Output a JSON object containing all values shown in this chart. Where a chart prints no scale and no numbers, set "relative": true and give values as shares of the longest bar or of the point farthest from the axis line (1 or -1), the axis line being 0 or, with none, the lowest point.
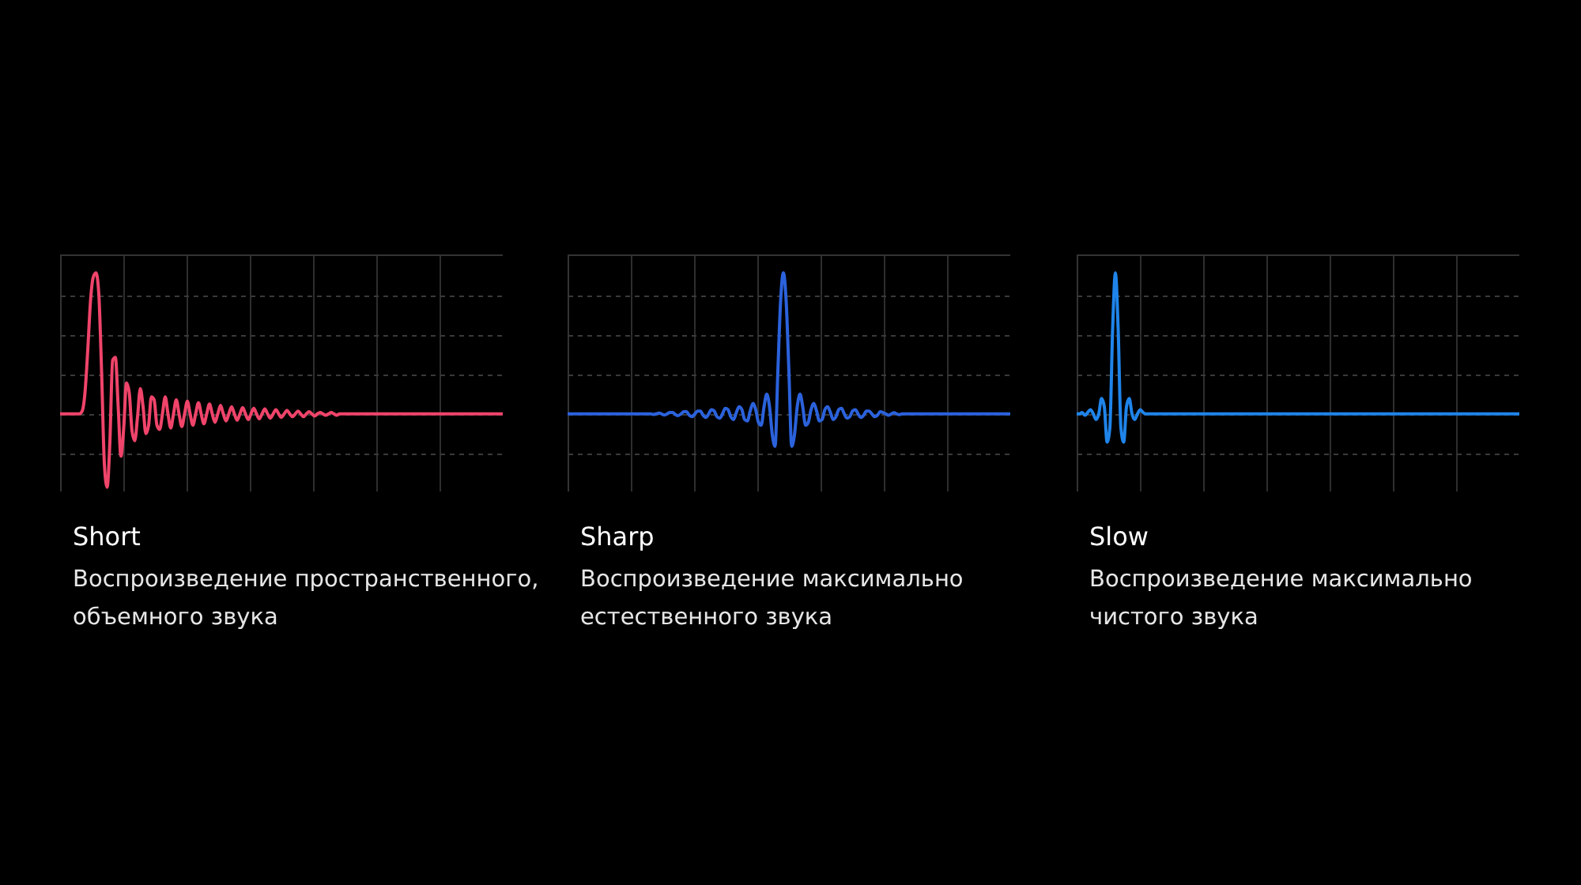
{
  "chart_data": [
    {
      "type": "line",
      "relative": true,
      "grid": true,
      "title": "Short",
      "subtitle": "Воспроизведение пространственного, объемного звука",
      "categories": [
        null,
        null,
        null,
        null,
        null,
        null,
        null,
        null,
        null,
        null,
        null,
        null,
        null,
        null,
        null,
        null,
        null,
        null,
        null,
        null,
        null,
        null,
        null,
        null,
        null,
        null,
        null,
        null,
        null,
        null,
        null,
        null,
        null,
        null,
        null,
        null,
        null,
        null,
        null,
        null,
        null,
        null,
        null,
        null,
        null,
        null,
        null,
        null,
        null,
        null,
        null,
        null,
        null,
        null,
        null,
        null,
        null,
        null,
        null,
        null,
        null,
        null,
        null,
        null,
        null,
        null,
        null,
        null,
        null,
        null,
        null,
        null,
        null,
        null,
        null,
        null,
        null,
        null,
        null,
        null,
        null,
        null,
        null,
        null,
        null,
        null,
        null,
        null,
        null,
        null,
        null,
        null,
        null,
        null,
        null,
        null,
        null,
        null,
        null,
        null,
        null,
        null,
        null,
        null,
        null,
        null,
        null,
        null,
        null,
        null,
        null,
        null,
        null,
        null,
        null,
        null,
        null,
        null,
        null,
        null,
        null,
        null,
        null,
        null,
        null,
        null,
        null,
        null,
        null,
        null,
        null,
        null,
        null,
        null,
        null,
        null,
        null,
        null,
        null,
        null,
        null,
        null,
        null,
        null,
        null,
        null,
        null,
        null,
        null,
        null,
        null,
        null,
        null,
        null,
        null,
        null,
        null,
        null,
        null,
        null,
        null
      ],
      "series": [
        {
          "color": "#f0446a",
          "values": [
            0,
            0,
            0,
            0,
            0,
            0,
            0,
            0,
            0.02,
            0.15,
            0.45,
            0.8,
            0.97,
            1,
            0.85,
            0.3,
            -0.35,
            -0.52,
            -0.2,
            0.38,
            0.4,
            0.05,
            -0.3,
            -0.1,
            0.22,
            0.15,
            -0.12,
            -0.19,
            -0.02,
            0.18,
            0.05,
            -0.14,
            -0.08,
            0.12,
            0.1,
            -0.08,
            -0.11,
            0,
            0.12,
            0,
            -0.1,
            0,
            0.1,
            0,
            -0.09,
            0,
            0.09,
            0,
            -0.08,
            0,
            0.08,
            0,
            -0.07,
            0,
            0.07,
            0,
            -0.06,
            0,
            0.06,
            0,
            -0.05,
            0,
            0.05,
            0,
            -0.045,
            0,
            0.045,
            0,
            -0.04,
            0,
            0.04,
            0,
            -0.035,
            0,
            0.035,
            0,
            -0.03,
            0,
            0.03,
            0,
            -0.025,
            0,
            0.025,
            0,
            -0.02,
            0,
            0.02,
            0,
            -0.02,
            0,
            0.015,
            0,
            -0.015,
            0,
            0.01,
            0,
            -0.01,
            0,
            0.01,
            0,
            -0.01,
            0,
            0,
            0,
            0,
            0,
            0,
            0,
            0,
            0,
            0,
            0,
            0,
            0,
            0,
            0,
            0,
            0,
            0,
            0,
            0,
            0,
            0,
            0,
            0,
            0,
            0,
            0,
            0,
            0,
            0,
            0,
            0,
            0,
            0,
            0,
            0,
            0,
            0,
            0,
            0,
            0,
            0,
            0,
            0,
            0,
            0,
            0,
            0,
            0,
            0,
            0,
            0,
            0,
            0,
            0,
            0,
            0,
            0,
            0,
            0
          ]
        }
      ]
    },
    {
      "type": "line",
      "relative": true,
      "grid": true,
      "title": "Sharp",
      "subtitle": "Воспроизведение максимально естественного звука",
      "categories": [
        null,
        null,
        null,
        null,
        null,
        null,
        null,
        null,
        null,
        null,
        null,
        null,
        null,
        null,
        null,
        null,
        null,
        null,
        null,
        null,
        null,
        null,
        null,
        null,
        null,
        null,
        null,
        null,
        null,
        null,
        null,
        null,
        null,
        null,
        null,
        null,
        null,
        null,
        null,
        null,
        null,
        null,
        null,
        null,
        null,
        null,
        null,
        null,
        null,
        null,
        null,
        null,
        null,
        null,
        null,
        null,
        null,
        null,
        null,
        null,
        null,
        null,
        null,
        null,
        null,
        null,
        null,
        null,
        null,
        null,
        null,
        null,
        null,
        null,
        null,
        null,
        null,
        null,
        null,
        null,
        null,
        null,
        null,
        null,
        null,
        null,
        null,
        null,
        null,
        null,
        null,
        null,
        null,
        null,
        null,
        null,
        null,
        null,
        null,
        null,
        null,
        null,
        null,
        null,
        null,
        null,
        null,
        null,
        null,
        null,
        null,
        null,
        null,
        null,
        null,
        null,
        null,
        null,
        null,
        null,
        null,
        null,
        null,
        null,
        null,
        null,
        null,
        null,
        null,
        null,
        null,
        null,
        null,
        null,
        null,
        null,
        null,
        null,
        null,
        null,
        null,
        null,
        null,
        null,
        null,
        null,
        null,
        null,
        null,
        null,
        null,
        null,
        null,
        null,
        null,
        null,
        null,
        null,
        null,
        null,
        null
      ],
      "series": [
        {
          "color": "#2b62dc",
          "values": [
            0,
            0,
            0,
            0,
            0,
            0,
            0,
            0,
            0,
            0,
            0,
            0,
            0,
            0,
            0,
            0,
            0,
            0,
            0,
            0,
            0,
            0,
            0,
            0,
            0,
            0,
            0,
            0,
            0,
            0,
            0,
            -0.004,
            0,
            0.006,
            0,
            -0.008,
            0,
            0.01,
            0.01,
            -0.005,
            -0.012,
            0,
            0.015,
            0.015,
            -0.01,
            -0.02,
            0,
            0.02,
            0.02,
            -0.01,
            -0.025,
            0,
            0.03,
            0.02,
            -0.02,
            -0.03,
            0,
            0.04,
            0.03,
            -0.02,
            -0.04,
            0.01,
            0.05,
            0.03,
            -0.04,
            -0.05,
            0.02,
            0.075,
            0.03,
            -0.06,
            -0.08,
            0.05,
            0.14,
            0.05,
            -0.15,
            -0.23,
            0.3,
            0.8,
            1,
            0.8,
            0.3,
            -0.23,
            -0.15,
            0.05,
            0.14,
            0.05,
            -0.08,
            -0.06,
            0.03,
            0.075,
            0.02,
            -0.05,
            -0.04,
            0.03,
            0.05,
            0.01,
            -0.04,
            -0.02,
            0.03,
            0.04,
            0,
            -0.03,
            -0.02,
            0.02,
            0.03,
            0,
            -0.025,
            -0.01,
            0.02,
            0.02,
            0,
            -0.02,
            -0.01,
            0.015,
            0.01,
            0,
            -0.01,
            0,
            0.008,
            0,
            -0.005,
            0,
            0,
            0,
            0,
            0,
            0,
            0,
            0,
            0,
            0,
            0,
            0,
            0,
            0,
            0,
            0,
            0,
            0,
            0,
            0,
            0,
            0,
            0,
            0,
            0,
            0,
            0,
            0,
            0,
            0,
            0,
            0,
            0,
            0,
            0,
            0,
            0,
            0,
            0,
            0
          ]
        }
      ]
    },
    {
      "type": "line",
      "relative": true,
      "grid": true,
      "title": "Slow",
      "subtitle": "Воспроизведение максимально чистого звука",
      "categories": [
        null,
        null,
        null,
        null,
        null,
        null,
        null,
        null,
        null,
        null,
        null,
        null,
        null,
        null,
        null,
        null,
        null,
        null,
        null,
        null,
        null,
        null,
        null,
        null,
        null,
        null,
        null,
        null,
        null,
        null,
        null,
        null,
        null,
        null,
        null,
        null,
        null,
        null,
        null,
        null,
        null,
        null,
        null,
        null,
        null,
        null,
        null,
        null,
        null,
        null,
        null,
        null,
        null,
        null,
        null,
        null,
        null,
        null,
        null,
        null,
        null,
        null,
        null,
        null,
        null,
        null,
        null,
        null,
        null,
        null,
        null,
        null,
        null,
        null,
        null,
        null,
        null,
        null,
        null,
        null,
        null,
        null,
        null,
        null,
        null,
        null,
        null,
        null,
        null,
        null,
        null,
        null,
        null,
        null,
        null,
        null,
        null,
        null,
        null,
        null,
        null,
        null,
        null,
        null,
        null,
        null,
        null,
        null,
        null,
        null,
        null,
        null,
        null,
        null,
        null,
        null,
        null,
        null,
        null,
        null,
        null,
        null,
        null,
        null,
        null,
        null,
        null,
        null,
        null,
        null,
        null,
        null,
        null,
        null,
        null,
        null,
        null,
        null,
        null,
        null,
        null,
        null,
        null,
        null,
        null,
        null,
        null,
        null,
        null,
        null,
        null,
        null,
        null,
        null,
        null,
        null,
        null,
        null,
        null,
        null,
        null
      ],
      "series": [
        {
          "color": "#1f84ea",
          "values": [
            0,
            0,
            0.01,
            -0.01,
            0.01,
            0.03,
            0,
            -0.04,
            0,
            0.11,
            0.05,
            -0.2,
            -0.1,
            0.6,
            1,
            0.6,
            -0.1,
            -0.2,
            0.05,
            0.11,
            0,
            -0.04,
            0,
            0.03,
            0.01,
            0,
            0,
            0,
            0,
            0,
            0,
            0,
            0,
            0,
            0,
            0,
            0,
            0,
            0,
            0,
            0,
            0,
            0,
            0,
            0,
            0,
            0,
            0,
            0,
            0,
            0,
            0,
            0,
            0,
            0,
            0,
            0,
            0,
            0,
            0,
            0,
            0,
            0,
            0,
            0,
            0,
            0,
            0,
            0,
            0,
            0,
            0,
            0,
            0,
            0,
            0,
            0,
            0,
            0,
            0,
            0,
            0,
            0,
            0,
            0,
            0,
            0,
            0,
            0,
            0,
            0,
            0,
            0,
            0,
            0,
            0,
            0,
            0,
            0,
            0,
            0,
            0,
            0,
            0,
            0,
            0,
            0,
            0,
            0,
            0,
            0,
            0,
            0,
            0,
            0,
            0,
            0,
            0,
            0,
            0,
            0,
            0,
            0,
            0,
            0,
            0,
            0,
            0,
            0,
            0,
            0,
            0,
            0,
            0,
            0,
            0,
            0,
            0,
            0,
            0,
            0,
            0,
            0,
            0,
            0,
            0,
            0,
            0,
            0,
            0,
            0,
            0,
            0,
            0,
            0,
            0,
            0,
            0,
            0,
            0,
            0
          ]
        }
      ]
    }
  ]
}
